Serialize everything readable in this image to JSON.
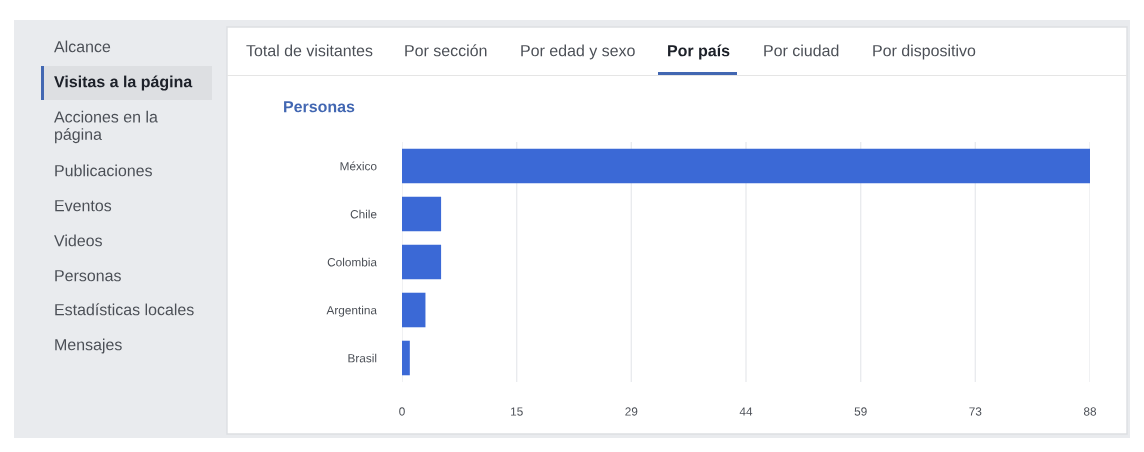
{
  "chart_data": {
    "type": "bar",
    "orientation": "horizontal",
    "title": "Personas",
    "categories": [
      "México",
      "Chile",
      "Colombia",
      "Argentina",
      "Brasil"
    ],
    "values": [
      88,
      5,
      5,
      3,
      1
    ],
    "color": "#3b69d6",
    "xlim": [
      0,
      88
    ],
    "xticks": [
      0,
      {
        "value": 14.67,
        "label": "15"
      },
      {
        "value": 29.33,
        "label": "29"
      },
      {
        "value": 44,
        "label": "44"
      },
      {
        "value": 58.67,
        "label": "59"
      },
      {
        "value": 73.33,
        "label": "73"
      },
      88
    ],
    "grid": "x",
    "legend": false,
    "annotations": [
      "Alcance",
      "Visitas a la página",
      "Acciones en la\npágina",
      "Publicaciones",
      "Eventos",
      "Videos",
      "Personas",
      "Estadísticas locales",
      "Mensajes",
      "Total de visitantes",
      "Por sección",
      "Por edad y sexo",
      "Por país",
      "Por ciudad",
      "Por dispositivo"
    ]
  }
}
